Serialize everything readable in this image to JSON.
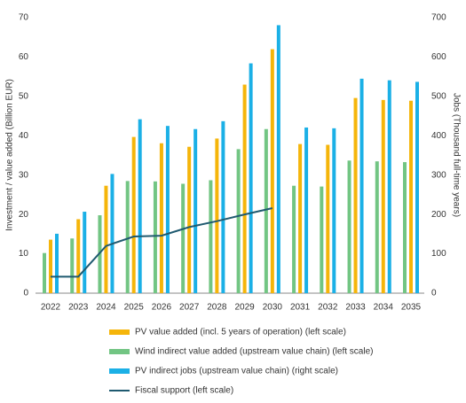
{
  "chart_data": {
    "type": "bar",
    "y_label": "Investment / value added (Billion EUR)",
    "y2_label": "Jobs (Thousand full-time years)",
    "categories": [
      "2022",
      "2023",
      "2024",
      "2025",
      "2026",
      "2027",
      "2028",
      "2029",
      "2030",
      "2031",
      "2032",
      "2033",
      "2034",
      "2035"
    ],
    "series": [
      {
        "name": "PV value added (incl. 5 years of operation) (left scale)",
        "color": "#f5b50a",
        "values": [
          13.6,
          18.8,
          27.3,
          39.7,
          38.1,
          37.2,
          39.3,
          53.0,
          62.0,
          37.9,
          37.7,
          49.6,
          49.1,
          48.9
        ]
      },
      {
        "name": "Wind indirect value added (upstream value chain) (left scale)",
        "color": "#72c583",
        "values": [
          10.2,
          13.9,
          19.8,
          28.5,
          28.4,
          27.8,
          28.7,
          36.6,
          41.7,
          27.3,
          27.1,
          33.7,
          33.5,
          33.3
        ]
      },
      {
        "name": "PV indirect jobs (upstream value chain) (right scale)",
        "color": "#1bb0e6",
        "axis": "y2",
        "values": [
          151,
          207,
          303,
          442,
          425,
          417,
          437,
          584,
          681,
          421,
          419,
          545,
          541,
          537
        ]
      },
      {
        "name": "Fiscal support (left scale)",
        "color": "#1f5a70",
        "type": "line",
        "values": [
          4.2,
          4.2,
          12.0,
          14.4,
          14.6,
          16.8,
          18.3,
          20.0,
          21.6,
          null,
          null,
          null,
          null,
          null
        ]
      }
    ],
    "ylim": [
      0,
      70
    ],
    "yticks": [
      0,
      10,
      20,
      30,
      40,
      50,
      60,
      70
    ],
    "y2lim": [
      0,
      700
    ],
    "y2ticks": [
      0,
      100,
      200,
      300,
      400,
      500,
      600,
      700
    ]
  }
}
